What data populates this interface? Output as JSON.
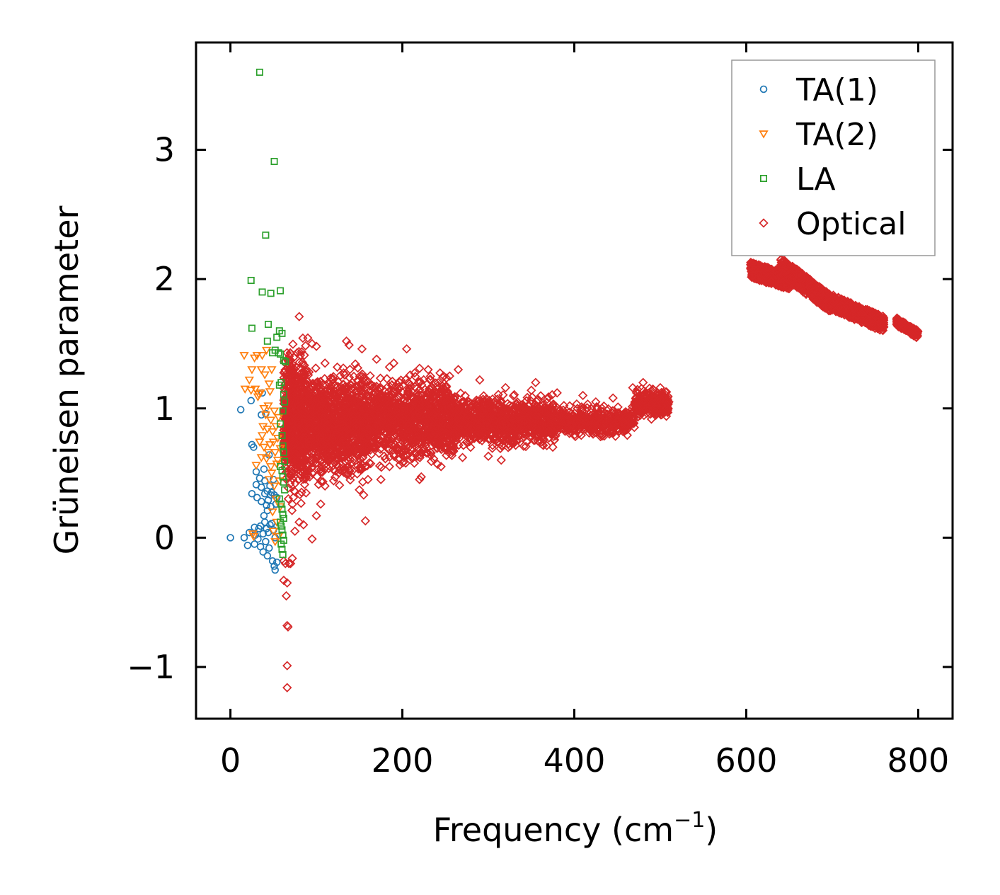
{
  "chart_data": {
    "type": "scatter",
    "xlabel": "Frequency (cm",
    "xlabel_sup": "−1",
    "xlabel_close": ")",
    "ylabel": "Grüneisen parameter",
    "xlim": [
      -40,
      840
    ],
    "ylim": [
      -1.4,
      3.83
    ],
    "xticks": [
      0,
      200,
      400,
      600,
      800
    ],
    "xtick_labels": [
      "0",
      "200",
      "400",
      "600",
      "800"
    ],
    "yticks": [
      -1,
      0,
      1,
      2,
      3
    ],
    "ytick_labels": [
      "−1",
      "0",
      "1",
      "2",
      "3"
    ],
    "legend_position": "top-right",
    "series": [
      {
        "name": "TA(1)",
        "marker": "circle",
        "color": "#1f77b4",
        "points": [
          [
            0,
            0
          ],
          [
            12,
            0.99
          ],
          [
            16,
            0
          ],
          [
            20,
            -0.06
          ],
          [
            22,
            0.04
          ],
          [
            24,
            1.06
          ],
          [
            25,
            0.34
          ],
          [
            25,
            0.72
          ],
          [
            27,
            0.7
          ],
          [
            28,
            -0.05
          ],
          [
            28,
            0.08
          ],
          [
            29,
            0.02
          ],
          [
            30,
            0.51
          ],
          [
            30,
            0.41
          ],
          [
            31,
            0.31
          ],
          [
            32,
            -0.01
          ],
          [
            33,
            0.07
          ],
          [
            34,
            0.46
          ],
          [
            35,
            -0.07
          ],
          [
            35,
            0.09
          ],
          [
            36,
            0.39
          ],
          [
            36,
            0.28
          ],
          [
            36,
            0.95
          ],
          [
            37,
            1.12
          ],
          [
            38,
            -0.11
          ],
          [
            38,
            0.03
          ],
          [
            39,
            0.53
          ],
          [
            39,
            0.17
          ],
          [
            40,
            0.12
          ],
          [
            40,
            0.44
          ],
          [
            40,
            0.34
          ],
          [
            41,
            0.96
          ],
          [
            41,
            -0.03
          ],
          [
            42,
            0.07
          ],
          [
            42,
            0.25
          ],
          [
            43,
            -0.14
          ],
          [
            43,
            0.21
          ],
          [
            43,
            0.36
          ],
          [
            44,
            0.29
          ],
          [
            44,
            0.04
          ],
          [
            45,
            0.64
          ],
          [
            45,
            -0.08
          ],
          [
            46,
            0.4
          ],
          [
            46,
            0.1
          ],
          [
            47,
            0.24
          ],
          [
            47,
            0.33
          ],
          [
            48,
            0.11
          ],
          [
            48,
            0.35
          ],
          [
            49,
            -0.18
          ],
          [
            50,
            0.06
          ],
          [
            50,
            0.45
          ],
          [
            51,
            -0.22
          ],
          [
            51,
            0.33
          ],
          [
            52,
            -0.25
          ],
          [
            52,
            0.0
          ],
          [
            53,
            0.26
          ],
          [
            54,
            0.31
          ],
          [
            54,
            -0.19
          ]
        ]
      },
      {
        "name": "TA(2)",
        "marker": "triangle",
        "color": "#ff7f0e",
        "points": [
          [
            16,
            1.41
          ],
          [
            17,
            1.15
          ],
          [
            22,
            1.22
          ],
          [
            24,
            1.14
          ],
          [
            25,
            1.3
          ],
          [
            26,
            0.03
          ],
          [
            27,
            0.01
          ],
          [
            28,
            1.39
          ],
          [
            29,
            1.15
          ],
          [
            30,
            0.56
          ],
          [
            31,
            1.41
          ],
          [
            32,
            1.09
          ],
          [
            33,
            1.11
          ],
          [
            34,
            0.74
          ],
          [
            35,
            1.12
          ],
          [
            36,
            0.62
          ],
          [
            36,
            1.3
          ],
          [
            37,
            0.79
          ],
          [
            37,
            1.41
          ],
          [
            38,
            0.86
          ],
          [
            39,
            0.7
          ],
          [
            39,
            1.0
          ],
          [
            40,
            1.26
          ],
          [
            41,
            0.95
          ],
          [
            42,
            1.45
          ],
          [
            42,
            0.61
          ],
          [
            43,
            0.84
          ],
          [
            44,
            1.02
          ],
          [
            44,
            0.66
          ],
          [
            45,
            1.19
          ],
          [
            45,
            0.45
          ],
          [
            46,
            0.72
          ],
          [
            46,
            1.13
          ],
          [
            47,
            0.91
          ],
          [
            47,
            0.55
          ],
          [
            48,
            1.3
          ],
          [
            48,
            0.5
          ],
          [
            49,
            0.82
          ],
          [
            49,
            0.2
          ],
          [
            50,
            0.74
          ],
          [
            50,
            0.05
          ],
          [
            51,
            0.98
          ],
          [
            51,
            0.4
          ],
          [
            52,
            0.66
          ],
          [
            52,
            -0.03
          ],
          [
            53,
            0.86
          ],
          [
            53,
            0.3
          ],
          [
            54,
            0.57
          ],
          [
            54,
            0.12
          ],
          [
            55,
            0.77
          ],
          [
            55,
            0.6
          ],
          [
            56,
            0.93
          ],
          [
            56,
            0.01
          ],
          [
            57,
            0.44
          ],
          [
            58,
            0.69
          ],
          [
            58,
            0.24
          ]
        ]
      },
      {
        "name": "LA",
        "marker": "square",
        "color": "#2ca02c",
        "points": [
          [
            34,
            3.6
          ],
          [
            51,
            2.91
          ],
          [
            41,
            2.34
          ],
          [
            24,
            1.99
          ],
          [
            37,
            1.9
          ],
          [
            47,
            1.89
          ],
          [
            58,
            1.91
          ],
          [
            25,
            1.62
          ],
          [
            44,
            1.65
          ],
          [
            43,
            1.52
          ],
          [
            54,
            1.55
          ],
          [
            57,
            1.6
          ],
          [
            60,
            1.58
          ],
          [
            49,
            1.43
          ],
          [
            52,
            1.45
          ],
          [
            56,
            1.43
          ],
          [
            58,
            1.42
          ],
          [
            62,
            1.37
          ],
          [
            64,
            1.36
          ],
          [
            57,
            1.18
          ],
          [
            59,
            1.2
          ],
          [
            62,
            1.11
          ],
          [
            63,
            1.05
          ],
          [
            61,
            0.98
          ],
          [
            58,
            0.88
          ],
          [
            60,
            0.79
          ],
          [
            61,
            0.71
          ],
          [
            62,
            0.66
          ],
          [
            63,
            0.59
          ],
          [
            58,
            0.55
          ],
          [
            60,
            0.52
          ],
          [
            61,
            0.47
          ],
          [
            62,
            0.43
          ],
          [
            63,
            0.37
          ],
          [
            57,
            0.3
          ],
          [
            59,
            0.26
          ],
          [
            60,
            0.22
          ],
          [
            61,
            0.18
          ],
          [
            62,
            0.15
          ],
          [
            58,
            0.12
          ],
          [
            59,
            0.09
          ],
          [
            60,
            0.06
          ],
          [
            61,
            0.02
          ],
          [
            62,
            -0.02
          ],
          [
            59,
            -0.05
          ],
          [
            60,
            -0.09
          ],
          [
            61,
            -0.13
          ]
        ]
      },
      {
        "name": "Optical",
        "marker": "diamond",
        "color": "#d62728",
        "clusters": [
          {
            "x": [
              62,
              90
            ],
            "ymin": 0.15,
            "ymax": 1.65,
            "n": 700
          },
          {
            "x": [
              90,
              160
            ],
            "ymin": 0.35,
            "ymax": 1.4,
            "n": 1100
          },
          {
            "x": [
              160,
              260
            ],
            "ymin": 0.5,
            "ymax": 1.32,
            "n": 1100
          },
          {
            "x": [
              260,
              380
            ],
            "ymin": 0.65,
            "ymax": 1.15,
            "n": 900
          },
          {
            "x": [
              380,
              470
            ],
            "ymin": 0.75,
            "ymax": 1.05,
            "n": 450
          },
          {
            "x": [
              470,
              510
            ],
            "ymin": 0.9,
            "ymax": 1.18,
            "n": 250
          }
        ],
        "bands": [
          {
            "x": [
              605,
              650
            ],
            "y": [
              2.07,
              1.98
            ],
            "spread": 0.06,
            "n": 450
          },
          {
            "x": [
              640,
              700
            ],
            "y": [
              2.1,
              1.8
            ],
            "spread": 0.07,
            "n": 500
          },
          {
            "x": [
              700,
              760
            ],
            "y": [
              1.82,
              1.65
            ],
            "spread": 0.06,
            "n": 420
          },
          {
            "x": [
              775,
              800
            ],
            "y": [
              1.67,
              1.57
            ],
            "spread": 0.03,
            "n": 140
          }
        ],
        "points": [
          [
            62,
            -0.18
          ],
          [
            64,
            -0.2
          ],
          [
            66,
            -0.35
          ],
          [
            62,
            -0.33
          ],
          [
            65,
            -0.45
          ],
          [
            66,
            -0.68
          ],
          [
            67,
            -0.69
          ],
          [
            66,
            -0.99
          ],
          [
            66,
            -1.16
          ],
          [
            68,
            -0.2
          ],
          [
            70,
            -0.2
          ],
          [
            72,
            -0.16
          ],
          [
            75,
            0.05
          ],
          [
            80,
            0.12
          ],
          [
            85,
            0.1
          ],
          [
            95,
            -0.01
          ],
          [
            100,
            0.17
          ],
          [
            105,
            0.26
          ],
          [
            110,
            0.4
          ],
          [
            120,
            0.44
          ],
          [
            130,
            0.52
          ],
          [
            140,
            0.48
          ],
          [
            150,
            0.37
          ],
          [
            155,
            0.33
          ],
          [
            157,
            0.13
          ],
          [
            160,
            0.45
          ],
          [
            165,
            0.7
          ],
          [
            175,
            0.45
          ],
          [
            185,
            0.55
          ],
          [
            200,
            0.58
          ],
          [
            220,
            0.45
          ],
          [
            222,
            0.47
          ],
          [
            245,
            0.55
          ],
          [
            270,
            0.62
          ],
          [
            300,
            0.63
          ],
          [
            315,
            0.6
          ],
          [
            345,
            0.74
          ],
          [
            375,
            0.7
          ],
          [
            80,
            1.71
          ],
          [
            95,
            1.5
          ],
          [
            100,
            1.48
          ],
          [
            110,
            1.35
          ],
          [
            135,
            1.52
          ],
          [
            138,
            1.49
          ],
          [
            153,
            1.46
          ],
          [
            170,
            1.38
          ],
          [
            185,
            1.32
          ],
          [
            190,
            1.35
          ],
          [
            205,
            1.46
          ],
          [
            220,
            1.31
          ],
          [
            230,
            1.3
          ],
          [
            255,
            1.25
          ],
          [
            265,
            1.3
          ],
          [
            290,
            1.22
          ],
          [
            320,
            1.16
          ],
          [
            350,
            1.14
          ],
          [
            355,
            1.2
          ],
          [
            380,
            1.12
          ],
          [
            410,
            1.1
          ],
          [
            425,
            1.05
          ],
          [
            445,
            1.08
          ],
          [
            468,
            1.16
          ],
          [
            480,
            1.2
          ],
          [
            500,
            1.16
          ],
          [
            510,
            1.05
          ]
        ]
      }
    ]
  }
}
